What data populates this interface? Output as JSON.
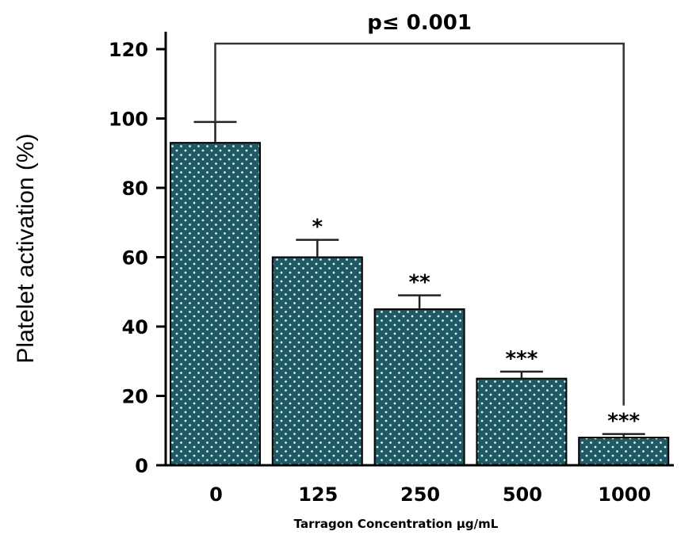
{
  "chart_data": {
    "type": "bar",
    "categories": [
      "0",
      "125",
      "250",
      "500",
      "1000"
    ],
    "values": [
      93,
      60,
      45,
      25,
      8
    ],
    "errors": [
      6,
      5,
      4,
      2,
      1
    ],
    "significance": [
      "",
      "*",
      "**",
      "***",
      "***"
    ],
    "xlabel": "Tarragon Concentration µg/mL",
    "ylabel": "Platelet activation (%)",
    "ylim": [
      0,
      120
    ],
    "yticks": [
      0,
      20,
      40,
      60,
      80,
      100,
      120
    ],
    "bracket": {
      "from": "0",
      "to": "1000",
      "label": "p≤ 0.001"
    },
    "grid": false,
    "colors": {
      "bar_fill": "#1f5a64",
      "dot": "#dff3f3",
      "axis": "#000000",
      "bracket": "#333333"
    }
  }
}
